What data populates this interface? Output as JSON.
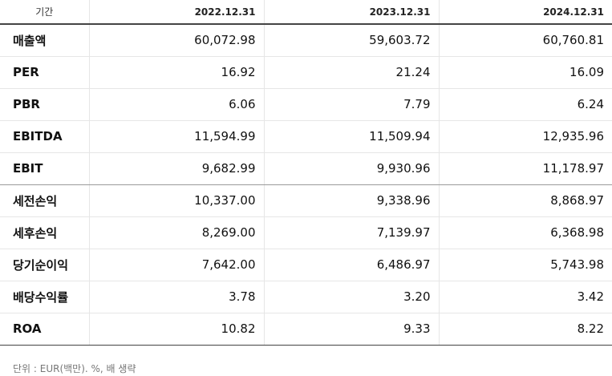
{
  "table": {
    "header": {
      "label": "기간",
      "periods": [
        "2022.12.31",
        "2023.12.31",
        "2024.12.31"
      ]
    },
    "rows": [
      {
        "label": "매출액",
        "values": [
          "60,072.98",
          "59,603.72",
          "60,760.81"
        ]
      },
      {
        "label": "PER",
        "values": [
          "16.92",
          "21.24",
          "16.09"
        ]
      },
      {
        "label": "PBR",
        "values": [
          "6.06",
          "7.79",
          "6.24"
        ]
      },
      {
        "label": "EBITDA",
        "values": [
          "11,594.99",
          "11,509.94",
          "12,935.96"
        ]
      },
      {
        "label": "EBIT",
        "values": [
          "9,682.99",
          "9,930.96",
          "11,178.97"
        ]
      },
      {
        "label": "세전손익",
        "values": [
          "10,337.00",
          "9,338.96",
          "8,868.97"
        ]
      },
      {
        "label": "세후손익",
        "values": [
          "8,269.00",
          "7,139.97",
          "6,368.98"
        ]
      },
      {
        "label": "당기순이익",
        "values": [
          "7,642.00",
          "6,486.97",
          "5,743.98"
        ]
      },
      {
        "label": "배당수익률",
        "values": [
          "3.78",
          "3.20",
          "3.42"
        ]
      },
      {
        "label": "ROA",
        "values": [
          "10.82",
          "9.33",
          "8.22"
        ]
      }
    ]
  },
  "footnote": "단위 : EUR(백만). %, 배 생략"
}
